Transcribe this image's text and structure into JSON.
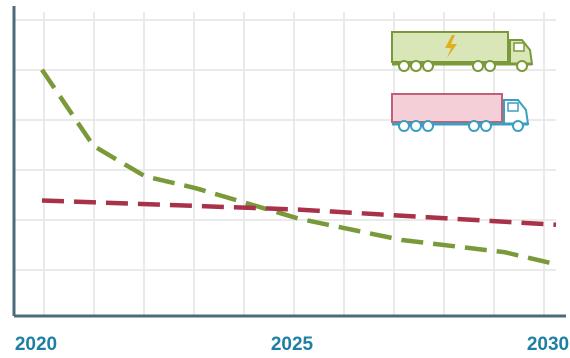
{
  "chart_data": {
    "type": "line",
    "title": "",
    "xlabel": "",
    "ylabel": "",
    "x_ticks": [
      "2020",
      "2025",
      "2030"
    ],
    "xlim": [
      2020,
      2030
    ],
    "ylim": [
      0,
      100
    ],
    "grid": true,
    "legend_placement": "top-right",
    "series": [
      {
        "legend_icon": "electric-truck-icon",
        "color": "#7a9a3a",
        "line_style": "dashed",
        "points": [
          {
            "x": 2020,
            "y": 81
          },
          {
            "x": 2021,
            "y": 56
          },
          {
            "x": 2022,
            "y": 46
          },
          {
            "x": 2023,
            "y": 42
          },
          {
            "x": 2025,
            "y": 32
          },
          {
            "x": 2027,
            "y": 25
          },
          {
            "x": 2029,
            "y": 21
          },
          {
            "x": 2030,
            "y": 17
          }
        ]
      },
      {
        "legend_icon": "diesel-truck-icon",
        "color": "#a8324a",
        "line_style": "dashed",
        "points": [
          {
            "x": 2020,
            "y": 38
          },
          {
            "x": 2025,
            "y": 35
          },
          {
            "x": 2030,
            "y": 30
          }
        ]
      }
    ],
    "colors": {
      "grid": "#e4e4e4",
      "axis": "#4a6b7c",
      "tick_label": "#1f7fa3",
      "electric_truck_fill": "#d9e6b8",
      "electric_truck_stroke": "#7a9a3a",
      "electric_truck_bolt": "#e0b020",
      "diesel_truck_fill": "#f5cfd8",
      "diesel_truck_stroke": "#c06078",
      "diesel_truck_cab": "#3a9fc0"
    }
  }
}
